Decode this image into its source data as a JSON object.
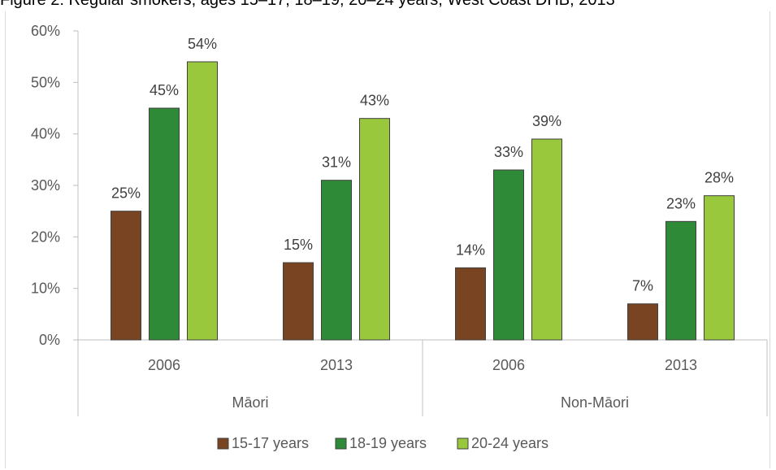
{
  "title": "Figure 2: Regular smokers, ages 15–17, 18–19, 20–24 years, West Coast DHB, 2013",
  "chart_data": {
    "type": "bar",
    "title": "Figure 2: Regular smokers, ages 15–17, 18–19, 20–24 years, West Coast DHB, 2013",
    "groups": [
      {
        "name": "Māori",
        "categories": [
          "2006",
          "2013"
        ]
      },
      {
        "name": "Non-Māori",
        "categories": [
          "2006",
          "2013"
        ]
      }
    ],
    "categories": [
      "2006",
      "2013",
      "2006",
      "2013"
    ],
    "series": [
      {
        "name": "15-17 years",
        "color": "#784421",
        "values": [
          25,
          15,
          14,
          7
        ],
        "labels": [
          "25%",
          "15%",
          "14%",
          "7%"
        ]
      },
      {
        "name": "18-19 years",
        "color": "#2f8a38",
        "values": [
          45,
          31,
          33,
          23
        ],
        "labels": [
          "45%",
          "31%",
          "33%",
          "23%"
        ]
      },
      {
        "name": "20-24 years",
        "color": "#99c83c",
        "values": [
          54,
          43,
          39,
          28
        ],
        "labels": [
          "54%",
          "43%",
          "39%",
          "28%"
        ]
      }
    ],
    "ylim": [
      0,
      60
    ],
    "yticks": [
      "0%",
      "10%",
      "20%",
      "30%",
      "40%",
      "50%",
      "60%"
    ],
    "legend_position": "bottom",
    "grid": false
  }
}
